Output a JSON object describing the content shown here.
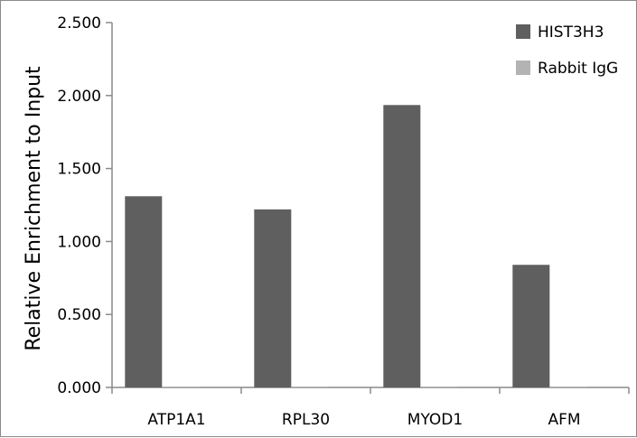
{
  "chart_data": {
    "type": "bar",
    "categories": [
      "ATP1A1",
      "RPL30",
      "MYOD1",
      "AFM"
    ],
    "series": [
      {
        "name": "HIST3H3",
        "values": [
          1.31,
          1.22,
          1.935,
          0.84
        ],
        "color": "#5f5f5f"
      },
      {
        "name": "Rabbit IgG",
        "values": [
          0.006,
          0.005,
          0.006,
          0.006
        ],
        "color": "#b3b3b3"
      }
    ],
    "ylabel": "Relative Enrichment to Input",
    "xlabel": "",
    "ylim": [
      0,
      2.5
    ],
    "yticks": [
      0,
      0.5,
      1.0,
      1.5,
      2.0,
      2.5
    ],
    "ytick_labels": [
      "0.000",
      "0.500",
      "1.000",
      "1.500",
      "2.000",
      "2.500"
    ],
    "legend_position": "top-right",
    "grid": false
  }
}
